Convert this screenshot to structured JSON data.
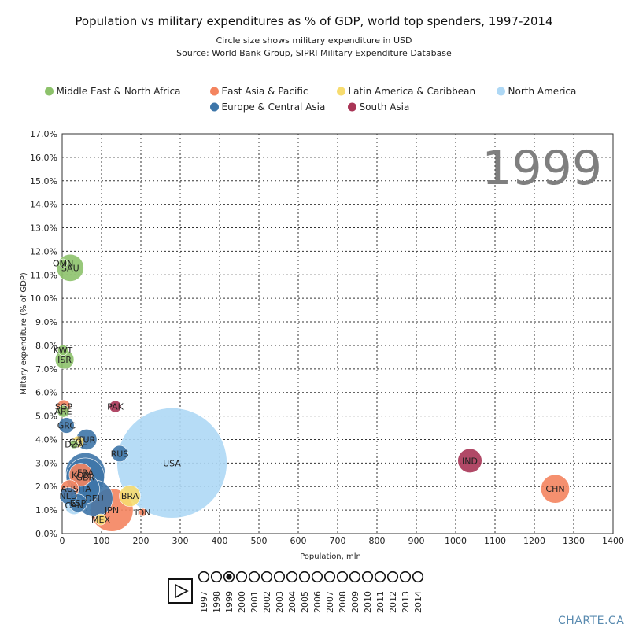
{
  "title": "Population vs military expenditures as % of GDP, world top spenders, 1997-2014",
  "subtitle_lines": [
    "Circle size shows military expenditure in USD",
    "Source: World Bank Group, SIPRI Military Expenditure Database"
  ],
  "brand": "CHARTE.CA",
  "current_year": "1999",
  "play_icon": "play-icon",
  "timeline": {
    "years": [
      "1997",
      "1998",
      "1999",
      "2000",
      "2001",
      "2002",
      "2003",
      "2004",
      "2005",
      "2006",
      "2007",
      "2008",
      "2009",
      "2010",
      "2011",
      "2012",
      "2013",
      "2014"
    ],
    "selected": "1999"
  },
  "chart_data": {
    "type": "scatter",
    "title": "Population vs military expenditures as % of GDP, world top spenders, 1997-2014",
    "xlabel": "Population, mln",
    "ylabel": "Miltary expenditure (% of GDP)",
    "xlim": [
      0,
      1400
    ],
    "ylim": [
      0,
      17
    ],
    "x_ticks": [
      "0",
      "100",
      "200",
      "300",
      "400",
      "500",
      "600",
      "700",
      "800",
      "900",
      "1000",
      "1100",
      "1200",
      "1300",
      "1400"
    ],
    "y_ticks": [
      "0.0%",
      "1.0%",
      "2.0%",
      "3.0%",
      "4.0%",
      "5.0%",
      "6.0%",
      "7.0%",
      "8.0%",
      "9.0%",
      "10.0%",
      "11.0%",
      "12.0%",
      "13.0%",
      "14.0%",
      "15.0%",
      "16.0%",
      "17.0%"
    ],
    "grid": true,
    "legend_position": "top",
    "legend": [
      {
        "name": "Middle East & North Africa",
        "color": "#8dc26b"
      },
      {
        "name": "East Asia & Pacific",
        "color": "#f4845f"
      },
      {
        "name": "Latin America & Caribbean",
        "color": "#f7dc6f"
      },
      {
        "name": "North America",
        "color": "#aed8f5"
      },
      {
        "name": "Europe & Central Asia",
        "color": "#3e76a9"
      },
      {
        "name": "South Asia",
        "color": "#a93556"
      }
    ],
    "points": [
      {
        "label": "OMN",
        "region": "Middle East & North Africa",
        "x": 2.3,
        "y": 11.5,
        "size": 1.7
      },
      {
        "label": "SAU",
        "region": "Middle East & North Africa",
        "x": 20.5,
        "y": 11.3,
        "size": 18.0
      },
      {
        "label": "KWT",
        "region": "Middle East & North Africa",
        "x": 2.0,
        "y": 7.8,
        "size": 2.7
      },
      {
        "label": "ISR",
        "region": "Middle East & North Africa",
        "x": 6.1,
        "y": 7.4,
        "size": 8.7
      },
      {
        "label": "SGP",
        "region": "East Asia & Pacific",
        "x": 3.9,
        "y": 5.4,
        "size": 4.5
      },
      {
        "label": "ARE",
        "region": "Middle East & North Africa",
        "x": 3.0,
        "y": 5.2,
        "size": 3.5
      },
      {
        "label": "PAK",
        "region": "South Asia",
        "x": 135,
        "y": 5.4,
        "size": 3.5
      },
      {
        "label": "TUR",
        "region": "Europe & Central Asia",
        "x": 62,
        "y": 4.0,
        "size": 10.5
      },
      {
        "label": "COL",
        "region": "Latin America & Caribbean",
        "x": 40,
        "y": 3.9,
        "size": 3.3
      },
      {
        "label": "DZA",
        "region": "Middle East & North Africa",
        "x": 30,
        "y": 3.8,
        "size": 1.8
      },
      {
        "label": "RUS",
        "region": "Europe & Central Asia",
        "x": 146,
        "y": 3.4,
        "size": 6.5
      },
      {
        "label": "USA",
        "region": "North America",
        "x": 279,
        "y": 3.0,
        "size": 298.0
      },
      {
        "label": "IND",
        "region": "South Asia",
        "x": 1036,
        "y": 3.1,
        "size": 14.3
      },
      {
        "label": "CHN",
        "region": "East Asia & Pacific",
        "x": 1253,
        "y": 1.9,
        "size": 20.0
      },
      {
        "label": "GRC",
        "region": "Europe & Central Asia",
        "x": 10.8,
        "y": 4.6,
        "size": 6.0
      },
      {
        "label": "FRA",
        "region": "Europe & Central Asia",
        "x": 59,
        "y": 2.6,
        "size": 38.0
      },
      {
        "label": "GBR",
        "region": "Europe & Central Asia",
        "x": 58.7,
        "y": 2.4,
        "size": 36.0
      },
      {
        "label": "KOR",
        "region": "East Asia & Pacific",
        "x": 47,
        "y": 2.5,
        "size": 13.0
      },
      {
        "label": "AUS",
        "region": "East Asia & Pacific",
        "x": 19,
        "y": 1.9,
        "size": 8.0
      },
      {
        "label": "ITA",
        "region": "Europe & Central Asia",
        "x": 57,
        "y": 1.9,
        "size": 22.0
      },
      {
        "label": "ESP",
        "region": "Europe & Central Asia",
        "x": 40,
        "y": 1.3,
        "size": 8.0
      },
      {
        "label": "NLD",
        "region": "Europe & Central Asia",
        "x": 15.8,
        "y": 1.6,
        "size": 7.0
      },
      {
        "label": "DEU",
        "region": "Europe & Central Asia",
        "x": 82,
        "y": 1.5,
        "size": 33.0
      },
      {
        "label": "CAN",
        "region": "North America",
        "x": 30.4,
        "y": 1.2,
        "size": 8.3
      },
      {
        "label": "BRA",
        "region": "Latin America & Caribbean",
        "x": 172,
        "y": 1.6,
        "size": 11.0
      },
      {
        "label": "JPN",
        "region": "East Asia & Pacific",
        "x": 126,
        "y": 1.0,
        "size": 45.0
      },
      {
        "label": "MEX",
        "region": "Latin America & Caribbean",
        "x": 98,
        "y": 0.6,
        "size": 3.0
      },
      {
        "label": "IDN",
        "region": "East Asia & Pacific",
        "x": 205,
        "y": 0.9,
        "size": 1.5
      }
    ]
  }
}
